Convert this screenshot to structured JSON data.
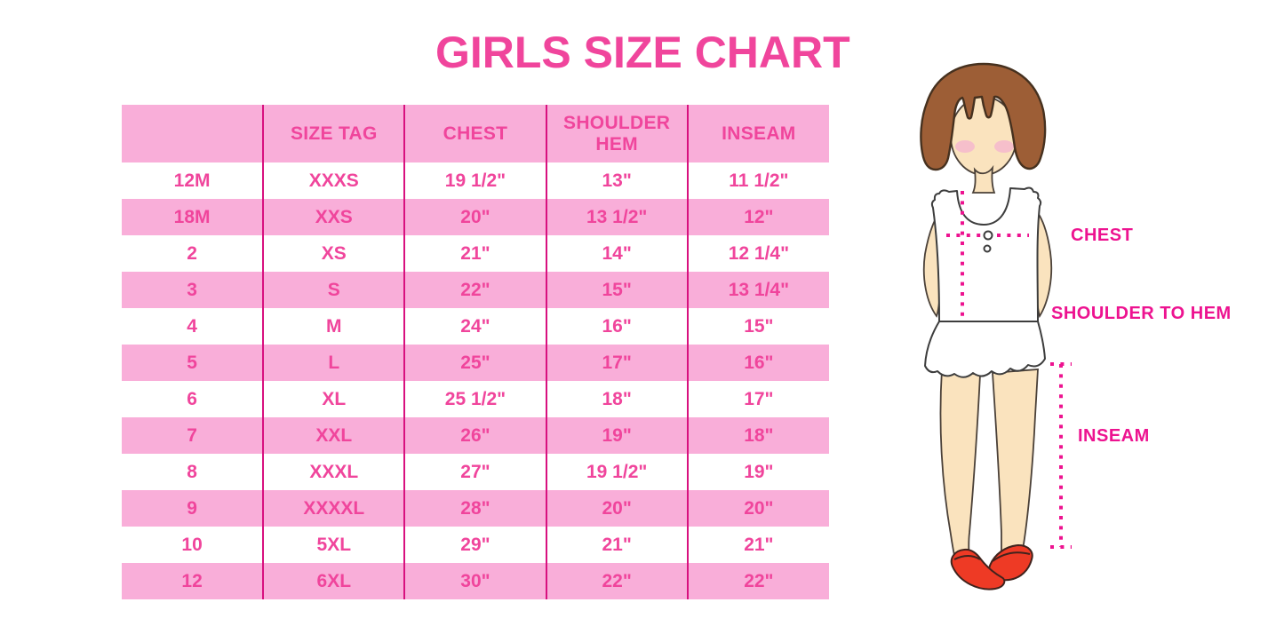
{
  "title": "GIRLS SIZE CHART",
  "colors": {
    "accent_pink": "#F0459C",
    "band_pink": "#F9AED9",
    "column_rule_magenta": "#D8117F",
    "measure_line_magenta": "#ED1390",
    "hair_brown": "#9D5E36",
    "skin": "#FAE3BE",
    "shoe_red": "#EE3A25"
  },
  "table": {
    "headers": [
      "",
      "SIZE TAG",
      "CHEST",
      "SHOULDER HEM",
      "INSEAM"
    ],
    "rows": [
      [
        "12M",
        "XXXS",
        "19 1/2\"",
        "13\"",
        "11 1/2\""
      ],
      [
        "18M",
        "XXS",
        "20\"",
        "13 1/2\"",
        "12\""
      ],
      [
        "2",
        "XS",
        "21\"",
        "14\"",
        "12 1/4\""
      ],
      [
        "3",
        "S",
        "22\"",
        "15\"",
        "13 1/4\""
      ],
      [
        "4",
        "M",
        "24\"",
        "16\"",
        "15\""
      ],
      [
        "5",
        "L",
        "25\"",
        "17\"",
        "16\""
      ],
      [
        "6",
        "XL",
        "25 1/2\"",
        "18\"",
        "17\""
      ],
      [
        "7",
        "XXL",
        "26\"",
        "19\"",
        "18\""
      ],
      [
        "8",
        "XXXL",
        "27\"",
        "19 1/2\"",
        "19\""
      ],
      [
        "9",
        "XXXXL",
        "28\"",
        "20\"",
        "20\""
      ],
      [
        "10",
        "5XL",
        "29\"",
        "21\"",
        "21\""
      ],
      [
        "12",
        "6XL",
        "30\"",
        "22\"",
        "22\""
      ]
    ]
  },
  "figure": {
    "labels": {
      "chest": "CHEST",
      "shoulder_to_hem": "SHOULDER TO HEM",
      "inseam": "INSEAM"
    }
  }
}
